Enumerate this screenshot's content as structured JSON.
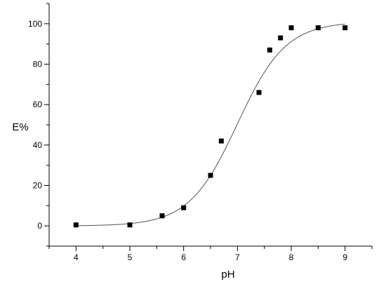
{
  "chart_data": {
    "type": "scatter",
    "title": "",
    "xlabel": "pH",
    "ylabel": "E%",
    "xlim": [
      3.5,
      9.5
    ],
    "ylim": [
      -10,
      110
    ],
    "xticks": [
      4,
      5,
      6,
      7,
      8,
      9
    ],
    "yticks": [
      0,
      20,
      40,
      60,
      80,
      100
    ],
    "grid": false,
    "legend": "none",
    "series": [
      {
        "kind": "points",
        "marker": "square",
        "color": "#000000",
        "x": [
          4.0,
          5.0,
          5.6,
          6.0,
          6.5,
          6.7,
          7.4,
          7.6,
          7.8,
          8.0,
          8.5,
          9.0
        ],
        "y": [
          0.5,
          0.5,
          5,
          9,
          25,
          42,
          66,
          87,
          93,
          98,
          98,
          98
        ]
      },
      {
        "kind": "fit-curve",
        "color": "#555555",
        "model": "logistic",
        "bottom": 0,
        "top": 101,
        "x50": 7.0,
        "slope": 0.45,
        "xrange": [
          4.0,
          9.0
        ]
      }
    ]
  }
}
